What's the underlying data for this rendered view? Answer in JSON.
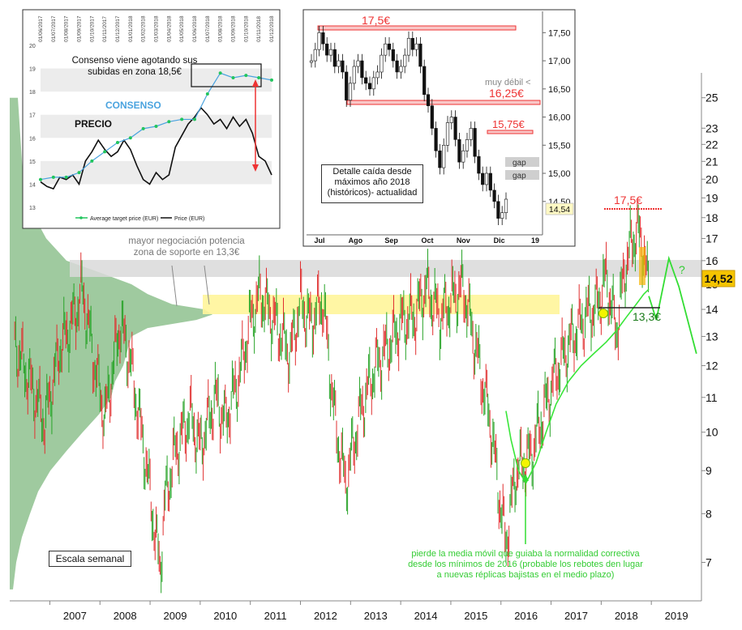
{
  "chart_data": [
    {
      "type": "line",
      "scale": "log",
      "x_axis_labels": [
        "2007",
        "2008",
        "2009",
        "2010",
        "2011",
        "2012",
        "2013",
        "2014",
        "2015",
        "2016",
        "2017",
        "2018",
        "2019"
      ],
      "y_axis_labels": [
        25,
        23,
        22,
        21,
        20,
        19,
        18,
        17,
        16,
        15,
        14,
        13,
        12,
        11,
        10,
        9,
        8,
        7
      ],
      "ylim": [
        6.3,
        27
      ],
      "xlim": [
        2006.2,
        2020.0
      ],
      "series": [
        {
          "style": "bars",
          "x": [
            2006.3,
            2006.6,
            2006.9,
            2007.2,
            2007.5,
            2007.65,
            2007.9,
            2008.1,
            2008.4,
            2008.6,
            2008.9,
            2009.1,
            2009.2,
            2009.3,
            2009.5,
            2009.8,
            2010.0,
            2010.3,
            2010.5,
            2010.8,
            2011.0,
            2011.2,
            2011.5,
            2011.8,
            2012.0,
            2012.2,
            2012.45,
            2012.7,
            2012.9,
            2013.2,
            2013.5,
            2013.8,
            2014.0,
            2014.3,
            2014.5,
            2014.8,
            2015.0,
            2015.25,
            2015.5,
            2015.8,
            2016.0,
            2016.1,
            2016.3,
            2016.6,
            2016.9,
            2017.1,
            2017.4,
            2017.7,
            2017.9,
            2018.1,
            2018.3,
            2018.5,
            2018.7,
            2018.85,
            2018.95
          ],
          "values": [
            12.8,
            11.5,
            10.3,
            12.6,
            13.8,
            14.8,
            12.0,
            10.4,
            13.5,
            12.2,
            9.4,
            7.6,
            6.9,
            8.3,
            9.5,
            10.5,
            9.6,
            11.0,
            10.3,
            11.8,
            13.6,
            14.6,
            13.5,
            12.4,
            14.3,
            13.5,
            14.4,
            10.2,
            8.7,
            10.6,
            12.0,
            12.8,
            13.5,
            13.8,
            14.9,
            13.7,
            14.4,
            14.9,
            12.6,
            10.2,
            8.1,
            7.4,
            9.0,
            9.4,
            10.8,
            11.8,
            12.9,
            13.8,
            14.1,
            15.3,
            13.2,
            16.0,
            17.4,
            16.6,
            14.52
          ]
        },
        {
          "name": "media móvil",
          "style": "line",
          "x": [
            2016.1,
            2016.2,
            2016.35,
            2016.5,
            2016.7,
            2016.9,
            2017.1,
            2017.35,
            2017.6,
            2017.85,
            2018.1,
            2018.3,
            2018.5,
            2018.7,
            2018.85,
            2018.95
          ],
          "values": [
            10.6,
            9.8,
            9.0,
            8.7,
            9.2,
            10.0,
            10.8,
            11.5,
            12.0,
            12.4,
            12.8,
            13.2,
            13.7,
            14.2,
            14.6,
            14.8
          ]
        },
        {
          "style": "forecast",
          "x": [
            2018.95,
            2019.1,
            2019.35,
            2019.55,
            2019.9
          ],
          "values": [
            14.52,
            13.6,
            16.1,
            14.9,
            12.4
          ]
        }
      ],
      "annotations": {
        "price_tag": "14,52",
        "resistance": "17,5€",
        "support": "13,3€",
        "question": "?",
        "zone_note": "mayor negociación potencia zona de soporte en 13,3€",
        "scale_note": "Escala semanal",
        "bottom_note": "pierde la media móvil que guiaba la normalidad correctiva desde los mínimos de 2016 (probable los rebotes den lugar a nuevas réplicas bajistas en el medio plazo)"
      },
      "grid": false
    },
    {
      "type": "line",
      "x_tick_labels": [
        "01/06/2017",
        "01/07/2017",
        "01/08/2017",
        "01/09/2017",
        "01/10/2017",
        "01/11/2017",
        "01/12/2017",
        "01/01/2018",
        "01/02/2018",
        "01/03/2018",
        "01/04/2018",
        "01/05/2018",
        "01/06/2018",
        "01/07/2018",
        "01/08/2018",
        "01/09/2018",
        "01/10/2018",
        "01/11/2018",
        "01/12/2018"
      ],
      "y_tick_labels": [
        20,
        19,
        18,
        17,
        16,
        15,
        14,
        13
      ],
      "ylim": [
        13,
        20
      ],
      "series": [
        {
          "name": "Average target price (EUR)",
          "label": "CONSENSO",
          "color": "#22c55e",
          "x": [
            0,
            1,
            2,
            3,
            4,
            5,
            6,
            7,
            8,
            9,
            10,
            11,
            12,
            13,
            14,
            15,
            16,
            17,
            18
          ],
          "values": [
            14.2,
            14.3,
            14.3,
            14.5,
            15.0,
            15.4,
            15.8,
            16.0,
            16.4,
            16.5,
            16.7,
            16.8,
            16.8,
            17.9,
            18.8,
            18.6,
            18.7,
            18.6,
            18.5
          ]
        },
        {
          "name": "Price (EUR)",
          "label": "PRECIO",
          "color": "#111111",
          "x": [
            0,
            0.5,
            1,
            1.5,
            2,
            2.5,
            3,
            3.5,
            4,
            4.5,
            5,
            5.5,
            6,
            6.5,
            7,
            7.5,
            8,
            8.5,
            9,
            9.5,
            10,
            10.5,
            11,
            11.5,
            12,
            12.5,
            13,
            13.5,
            14,
            14.5,
            15,
            15.5,
            16,
            16.5,
            17,
            17.5,
            18
          ],
          "values": [
            14.1,
            13.9,
            13.8,
            14.3,
            14.2,
            14.4,
            14.0,
            15.0,
            15.4,
            15.9,
            15.5,
            15.2,
            15.4,
            15.9,
            15.5,
            14.8,
            14.2,
            14.0,
            14.5,
            14.2,
            14.4,
            15.6,
            16.1,
            16.6,
            16.9,
            17.3,
            17.0,
            16.6,
            16.8,
            16.4,
            16.9,
            16.5,
            16.8,
            16.2,
            15.2,
            15.0,
            14.4
          ]
        }
      ],
      "annotations": {
        "title": "Consenso viene agotando sus subidas en zona 18,5€"
      },
      "legend": "bottom"
    },
    {
      "type": "bar",
      "x_tick_labels": [
        "Jul",
        "Ago",
        "Sep",
        "Oct",
        "Nov",
        "Dic",
        "19"
      ],
      "y_tick_labels": [
        "17,50",
        "17,00",
        "16,50",
        "16,00",
        "15,50",
        "15,00",
        "14,50"
      ],
      "ylim": [
        13.95,
        17.85
      ],
      "series": [
        {
          "style": "candles",
          "values": [
            17.0,
            17.2,
            17.5,
            17.3,
            17.1,
            17.2,
            16.9,
            17.0,
            16.8,
            16.3,
            16.6,
            16.9,
            17.0,
            16.7,
            16.6,
            16.5,
            16.7,
            16.8,
            17.1,
            17.3,
            17.2,
            17.0,
            16.8,
            16.9,
            17.1,
            17.4,
            17.2,
            17.3,
            16.9,
            16.4,
            16.2,
            15.8,
            15.4,
            15.1,
            15.5,
            15.9,
            16.0,
            15.6,
            15.2,
            15.4,
            15.6,
            15.8,
            15.3,
            15.0,
            14.8,
            15.0,
            14.7,
            14.5,
            14.2,
            14.3,
            14.54
          ]
        }
      ],
      "annotations": {
        "level_1": "17,5€",
        "level_2": "16,25€",
        "level_3": "15,75€",
        "weak_note": "muy débil <",
        "gap_1": "gap",
        "gap_2": "gap",
        "price_tag": "14,54",
        "detail_note": "Detalle caída desde máximos año 2018 (históricos)- actualidad"
      }
    }
  ]
}
